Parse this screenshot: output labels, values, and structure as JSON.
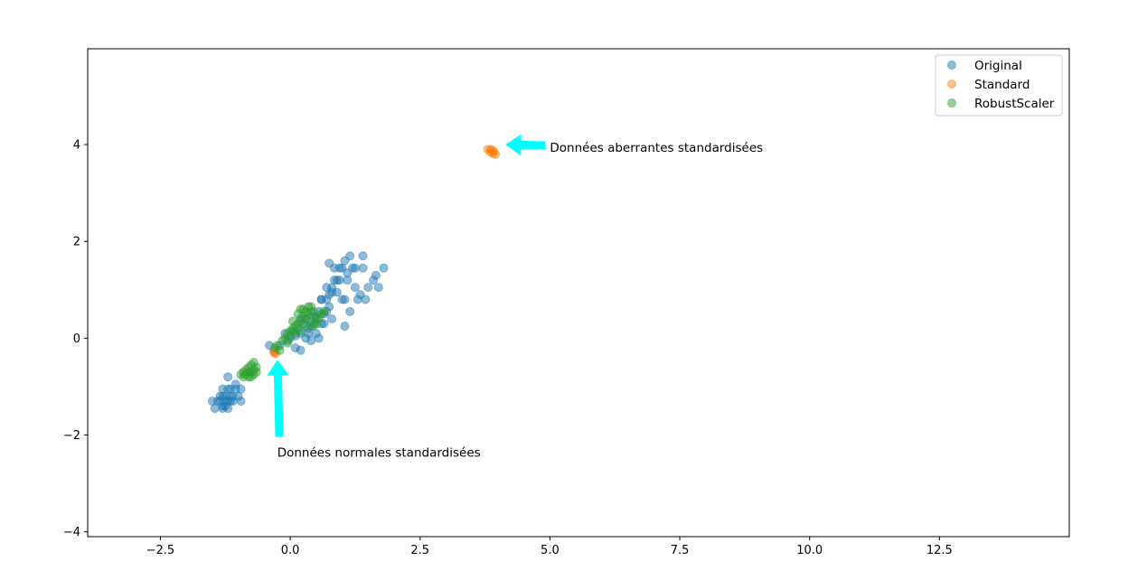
{
  "chart_data": {
    "type": "scatter",
    "title": "",
    "xlabel": "",
    "ylabel": "",
    "xlim": [
      -3.9,
      15.0
    ],
    "ylim": [
      -4.1,
      5.98
    ],
    "grid": false,
    "legend_position": "top-right",
    "x_ticks": [
      -2.5,
      0.0,
      2.5,
      5.0,
      7.5,
      10.0,
      12.5
    ],
    "x_tick_labels": [
      "−2.5",
      "0.0",
      "2.5",
      "5.0",
      "7.5",
      "10.0",
      "12.5"
    ],
    "y_ticks": [
      -4,
      -2,
      0,
      2,
      4
    ],
    "y_tick_labels": [
      "−4",
      "−2",
      "0",
      "2",
      "4"
    ],
    "series": [
      {
        "name": "Original",
        "color": "#1f77b4",
        "points": [
          [
            -1.5,
            -1.3
          ],
          [
            -1.45,
            -1.45
          ],
          [
            -1.4,
            -1.3
          ],
          [
            -1.35,
            -1.2
          ],
          [
            -1.35,
            -1.3
          ],
          [
            -1.3,
            -1.4
          ],
          [
            -1.3,
            -1.45
          ],
          [
            -1.3,
            -1.2
          ],
          [
            -1.3,
            -1.05
          ],
          [
            -1.25,
            -1.3
          ],
          [
            -1.25,
            -1.2
          ],
          [
            -1.25,
            -1.4
          ],
          [
            -1.2,
            -1.05
          ],
          [
            -1.2,
            -1.3
          ],
          [
            -1.2,
            -1.45
          ],
          [
            -1.15,
            -1.2
          ],
          [
            -1.15,
            -1.3
          ],
          [
            -1.15,
            -1.05
          ],
          [
            -1.1,
            -1.3
          ],
          [
            -1.1,
            -1.2
          ],
          [
            -1.05,
            -0.95
          ],
          [
            -1.05,
            -1.05
          ],
          [
            -1.0,
            -1.2
          ],
          [
            -0.95,
            -1.05
          ],
          [
            -0.95,
            -1.3
          ],
          [
            -1.2,
            -0.8
          ],
          [
            -0.4,
            -0.15
          ],
          [
            -0.3,
            -0.25
          ],
          [
            -0.2,
            -0.15
          ],
          [
            -0.1,
            0.1
          ],
          [
            -0.05,
            -0.05
          ],
          [
            0.0,
            0.0
          ],
          [
            0.05,
            0.15
          ],
          [
            0.1,
            -0.2
          ],
          [
            0.1,
            0.05
          ],
          [
            0.15,
            0.2
          ],
          [
            0.2,
            0.1
          ],
          [
            0.2,
            -0.25
          ],
          [
            0.25,
            0.3
          ],
          [
            0.3,
            0.4
          ],
          [
            0.3,
            0.0
          ],
          [
            0.35,
            0.2
          ],
          [
            0.4,
            0.55
          ],
          [
            0.4,
            -0.05
          ],
          [
            0.45,
            0.3
          ],
          [
            0.5,
            0.4
          ],
          [
            0.5,
            0.1
          ],
          [
            0.55,
            0.0
          ],
          [
            0.55,
            0.55
          ],
          [
            0.6,
            0.8
          ],
          [
            0.6,
            0.3
          ],
          [
            0.65,
            0.5
          ],
          [
            0.7,
            1.05
          ],
          [
            0.7,
            0.8
          ],
          [
            0.75,
            0.65
          ],
          [
            0.75,
            0.9
          ],
          [
            0.8,
            1.05
          ],
          [
            0.8,
            0.4
          ],
          [
            0.85,
            1.2
          ],
          [
            0.85,
            1.45
          ],
          [
            0.9,
            0.95
          ],
          [
            0.95,
            1.2
          ],
          [
            1.0,
            0.8
          ],
          [
            1.0,
            1.45
          ],
          [
            1.05,
            1.6
          ],
          [
            1.05,
            0.25
          ],
          [
            1.1,
            1.2
          ],
          [
            1.1,
            1.35
          ],
          [
            1.15,
            0.55
          ],
          [
            1.15,
            1.7
          ],
          [
            1.2,
            1.45
          ],
          [
            1.25,
            1.05
          ],
          [
            1.3,
            0.8
          ],
          [
            1.35,
            0.9
          ],
          [
            1.4,
            1.7
          ],
          [
            1.4,
            1.45
          ],
          [
            1.45,
            0.8
          ],
          [
            1.5,
            1.05
          ],
          [
            1.6,
            1.2
          ],
          [
            1.65,
            1.3
          ],
          [
            1.7,
            1.05
          ],
          [
            1.8,
            1.45
          ],
          [
            0.35,
            0.1
          ],
          [
            0.45,
            0.45
          ],
          [
            0.65,
            0.3
          ],
          [
            0.75,
            1.55
          ],
          [
            0.95,
            1.45
          ],
          [
            1.05,
            0.8
          ],
          [
            1.25,
            1.45
          ],
          [
            0.2,
            0.4
          ],
          [
            0.6,
            0.8
          ],
          [
            0.7,
            0.55
          ],
          [
            0.9,
            1.2
          ],
          [
            0.8,
            0.95
          ],
          [
            0.4,
            0.25
          ]
        ]
      },
      {
        "name": "Standard",
        "color": "#ff7f0e",
        "points": [
          [
            3.8,
            3.9
          ],
          [
            3.85,
            3.85
          ],
          [
            3.88,
            3.88
          ],
          [
            3.9,
            3.82
          ],
          [
            3.92,
            3.86
          ],
          [
            3.95,
            3.8
          ],
          [
            3.86,
            3.9
          ],
          [
            -0.3,
            -0.3
          ],
          [
            -0.28,
            -0.32
          ],
          [
            -0.32,
            -0.28
          ]
        ]
      },
      {
        "name": "RobustScaler",
        "color": "#2ca02c",
        "points": [
          [
            -0.95,
            -0.75
          ],
          [
            -0.9,
            -0.7
          ],
          [
            -0.9,
            -0.8
          ],
          [
            -0.85,
            -0.65
          ],
          [
            -0.85,
            -0.75
          ],
          [
            -0.8,
            -0.7
          ],
          [
            -0.8,
            -0.8
          ],
          [
            -0.8,
            -0.6
          ],
          [
            -0.75,
            -0.55
          ],
          [
            -0.75,
            -0.7
          ],
          [
            -0.75,
            -0.8
          ],
          [
            -0.7,
            -0.65
          ],
          [
            -0.7,
            -0.75
          ],
          [
            -0.65,
            -0.6
          ],
          [
            -0.65,
            -0.7
          ],
          [
            -0.7,
            -0.5
          ],
          [
            -0.3,
            -0.2
          ],
          [
            -0.25,
            -0.15
          ],
          [
            -0.2,
            -0.25
          ],
          [
            -0.15,
            -0.05
          ],
          [
            -0.1,
            0.0
          ],
          [
            -0.05,
            -0.1
          ],
          [
            0.0,
            0.05
          ],
          [
            0.0,
            0.15
          ],
          [
            0.05,
            0.2
          ],
          [
            0.1,
            0.1
          ],
          [
            0.1,
            0.25
          ],
          [
            0.15,
            0.3
          ],
          [
            0.2,
            0.35
          ],
          [
            0.2,
            0.15
          ],
          [
            0.25,
            0.45
          ],
          [
            0.25,
            0.6
          ],
          [
            0.3,
            0.4
          ],
          [
            0.3,
            0.55
          ],
          [
            0.35,
            0.5
          ],
          [
            0.4,
            0.35
          ],
          [
            0.4,
            0.65
          ],
          [
            0.45,
            0.55
          ],
          [
            0.5,
            0.45
          ],
          [
            0.5,
            0.3
          ],
          [
            0.55,
            0.4
          ],
          [
            0.6,
            0.5
          ],
          [
            0.65,
            0.55
          ],
          [
            0.2,
            0.6
          ],
          [
            0.15,
            0.5
          ],
          [
            0.3,
            0.25
          ],
          [
            0.05,
            0.35
          ],
          [
            0.35,
            0.65
          ],
          [
            -0.05,
            0.1
          ],
          [
            0.45,
            0.25
          ]
        ]
      }
    ],
    "annotations": [
      {
        "text": "Données aberrantes standardisées",
        "xy": [
          4.1,
          4.0
        ],
        "xytext": [
          5.0,
          3.95
        ]
      },
      {
        "text": "Données normales standardisées",
        "xy": [
          -0.3,
          -0.4
        ],
        "xytext": [
          -0.25,
          -2.35
        ]
      }
    ],
    "arrow_color": "#00ffff"
  }
}
